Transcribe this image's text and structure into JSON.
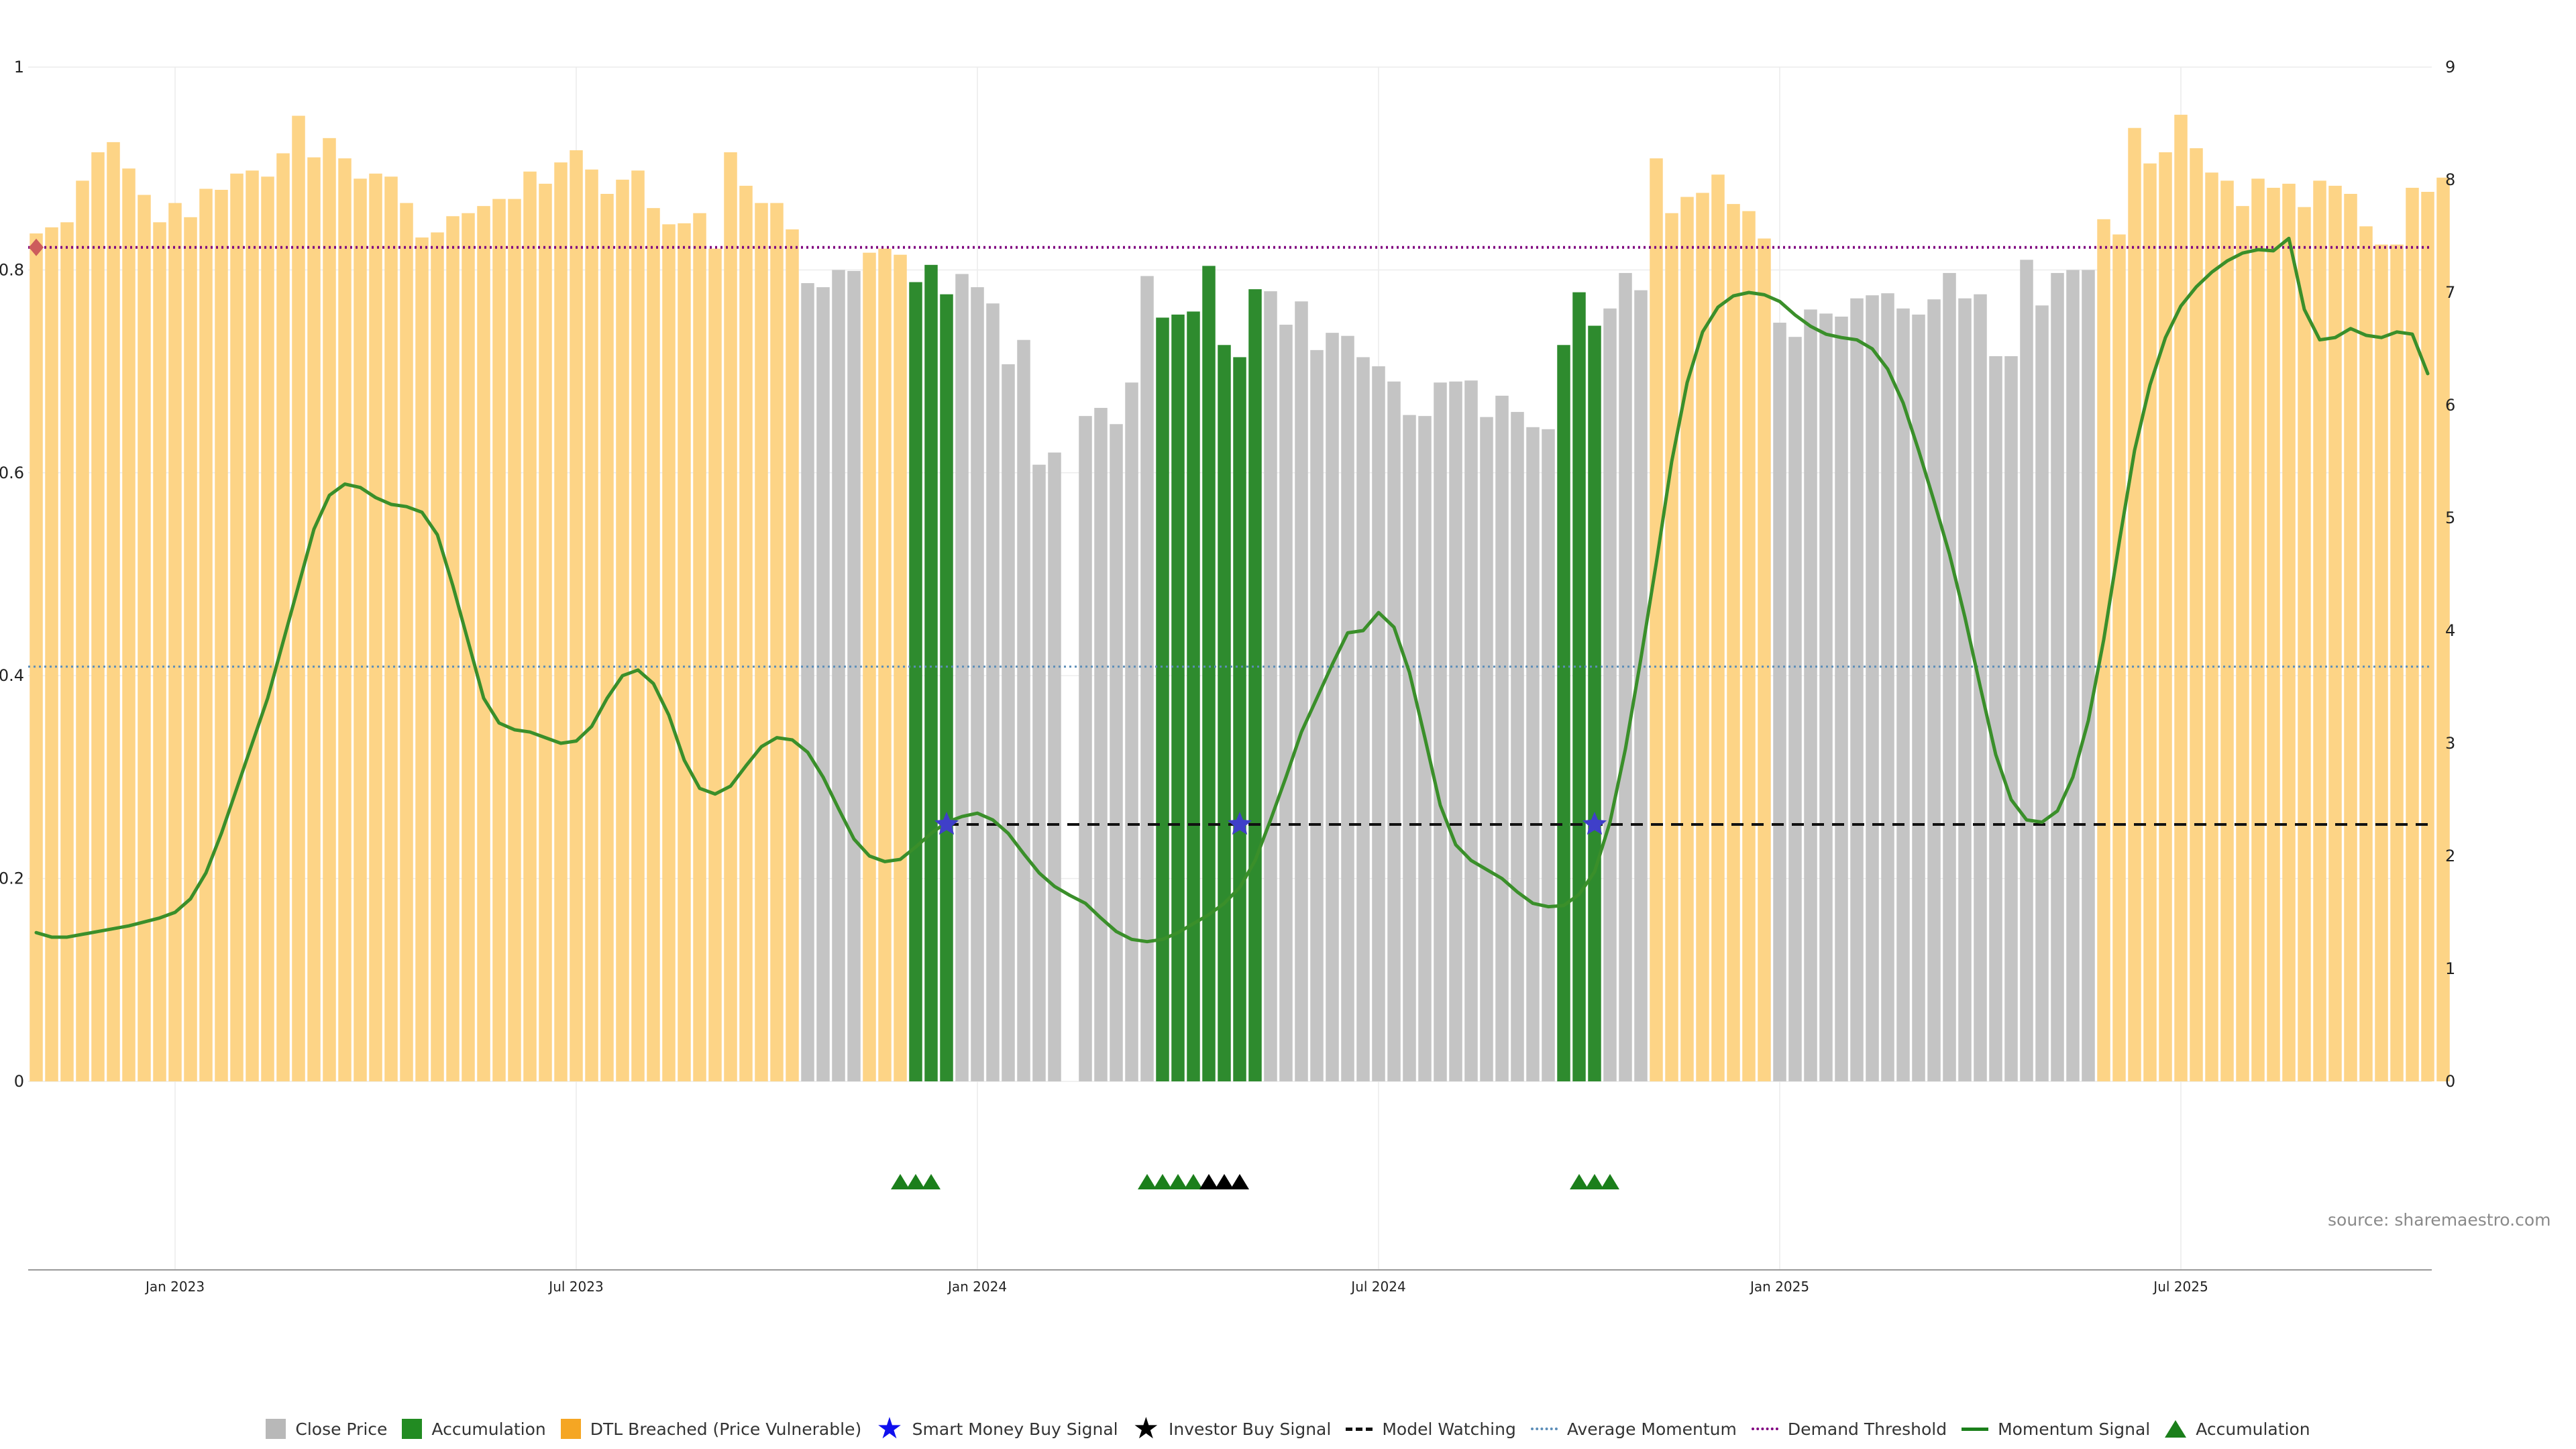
{
  "source_note": "source: sharemaestro.com",
  "colors": {
    "close": "#c4c4c4",
    "accumulation": "#2e8b2e",
    "dtl": "#fdd486",
    "momentum": "#3a8f2a",
    "avg_momentum": "#5b8db8",
    "demand": "#800080",
    "watching": "#111111",
    "smart_star": "#3f3fc9",
    "investor_star": "#000000",
    "marker_green": "#1b7f1b",
    "marker_black": "#000000",
    "diamond": "#cd5c5c"
  },
  "legend": [
    {
      "label": "Close Price",
      "kind": "square",
      "color": "#b8b8b8",
      "icon": "grey-square-icon"
    },
    {
      "label": "Accumulation",
      "kind": "square",
      "color": "#228b22",
      "icon": "green-square-icon"
    },
    {
      "label": "DTL Breached (Price Vulnerable)",
      "kind": "square",
      "color": "#f5a623",
      "icon": "orange-square-icon"
    },
    {
      "label": "Smart Money Buy Signal",
      "kind": "glyph",
      "glyph": "★",
      "color": "#1010ee",
      "icon": "blue-star-icon"
    },
    {
      "label": "Investor Buy Signal",
      "kind": "glyph",
      "glyph": "★",
      "color": "#000000",
      "icon": "black-star-icon"
    },
    {
      "label": "Model Watching",
      "kind": "line",
      "style": "dashed",
      "color": "#111111",
      "icon": "dashed-line-icon"
    },
    {
      "label": "Average Momentum",
      "kind": "line",
      "style": "dotted",
      "color": "#5b8db8",
      "icon": "dotted-blue-line-icon"
    },
    {
      "label": "Demand Threshold",
      "kind": "line",
      "style": "dotted",
      "color": "#800080",
      "icon": "dotted-purple-line-icon"
    },
    {
      "label": "Momentum Signal",
      "kind": "line",
      "style": "solid",
      "color": "#1b7f1b",
      "icon": "green-line-icon"
    },
    {
      "label": "Accumulation",
      "kind": "triangle",
      "color": "#1b7f1b",
      "icon": "green-triangle-icon"
    }
  ],
  "chart_data": {
    "type": "bar",
    "title": "",
    "xlabel": "",
    "ylabel_left": "",
    "ylabel_right": "",
    "left_axis": {
      "range": [
        0,
        1
      ],
      "ticks": [
        "0",
        "0.2",
        "0.4",
        "0.6",
        "0.8",
        "1"
      ],
      "tick_values": [
        0,
        0.2,
        0.4,
        0.6,
        0.8,
        1
      ]
    },
    "right_axis": {
      "range": [
        0,
        9
      ],
      "ticks": [
        "0",
        "1",
        "2",
        "3",
        "4",
        "5",
        "6",
        "7",
        "8",
        "9"
      ],
      "tick_values": [
        0,
        1,
        2,
        3,
        4,
        5,
        6,
        7,
        8,
        9
      ]
    },
    "grid": true,
    "legend_position": "bottom",
    "x_ticks": [
      {
        "label": "Jan 2023",
        "week": 9
      },
      {
        "label": "Jul 2023",
        "week": 35
      },
      {
        "label": "Jan 2024",
        "week": 61
      },
      {
        "label": "Jul 2024",
        "week": 87
      },
      {
        "label": "Jan 2025",
        "week": 113
      },
      {
        "label": "Jul 2025",
        "week": 139
      }
    ],
    "bars": {
      "unit": "weekly, price on left axis",
      "values": [
        0.836,
        0.842,
        0.847,
        0.888,
        0.916,
        0.926,
        0.9,
        0.874,
        0.847,
        0.866,
        0.852,
        0.88,
        0.879,
        0.895,
        0.898,
        0.892,
        0.915,
        0.952,
        0.911,
        0.93,
        0.91,
        0.89,
        0.895,
        0.892,
        0.866,
        0.832,
        0.837,
        0.853,
        0.856,
        0.863,
        0.87,
        0.87,
        0.897,
        0.885,
        0.906,
        0.918,
        0.899,
        0.875,
        0.889,
        0.898,
        0.861,
        0.845,
        0.846,
        0.856,
        0.821,
        0.916,
        0.883,
        0.866,
        0.866,
        0.84,
        0.787,
        0.783,
        0.8,
        0.799,
        0.817,
        0.821,
        0.815,
        0.788,
        0.805,
        0.776,
        0.796,
        0.783,
        0.767,
        0.707,
        0.731,
        0.608,
        0.62,
        null,
        0.656,
        0.664,
        0.648,
        0.689,
        0.794,
        0.753,
        0.756,
        0.759,
        0.804,
        0.726,
        0.714,
        0.781,
        0.779,
        0.746,
        0.769,
        0.721,
        0.738,
        0.735,
        0.714,
        0.705,
        0.69,
        0.657,
        0.656,
        0.689,
        0.69,
        0.691,
        0.655,
        0.676,
        0.66,
        0.645,
        0.643,
        0.726,
        0.778,
        0.745,
        0.762,
        0.797,
        0.78,
        0.91,
        0.856,
        0.872,
        0.876,
        0.894,
        0.865,
        0.858,
        0.831,
        0.748,
        0.734,
        0.761,
        0.757,
        0.754,
        0.772,
        0.775,
        0.777,
        0.762,
        0.756,
        0.771,
        0.797,
        0.772,
        0.776,
        0.715,
        0.715,
        0.81,
        0.765,
        0.797,
        0.8,
        0.8,
        0.85,
        0.835,
        0.94,
        0.905,
        0.916,
        0.953,
        0.92,
        0.896,
        0.888,
        0.863,
        0.89,
        0.881,
        0.885,
        0.862,
        0.888,
        0.883,
        0.875,
        0.843,
        0.825,
        0.825,
        0.881,
        0.877,
        0.891
      ],
      "category": [
        "dtl",
        "dtl",
        "dtl",
        "dtl",
        "dtl",
        "dtl",
        "dtl",
        "dtl",
        "dtl",
        "dtl",
        "dtl",
        "dtl",
        "dtl",
        "dtl",
        "dtl",
        "dtl",
        "dtl",
        "dtl",
        "dtl",
        "dtl",
        "dtl",
        "dtl",
        "dtl",
        "dtl",
        "dtl",
        "dtl",
        "dtl",
        "dtl",
        "dtl",
        "dtl",
        "dtl",
        "dtl",
        "dtl",
        "dtl",
        "dtl",
        "dtl",
        "dtl",
        "dtl",
        "dtl",
        "dtl",
        "dtl",
        "dtl",
        "dtl",
        "dtl",
        "dtl",
        "dtl",
        "dtl",
        "dtl",
        "dtl",
        "dtl",
        "close",
        "close",
        "close",
        "close",
        "dtl",
        "dtl",
        "dtl",
        "acc",
        "acc",
        "acc",
        "close",
        "close",
        "close",
        "close",
        "close",
        "close",
        "close",
        null,
        "close",
        "close",
        "close",
        "close",
        "close",
        "acc",
        "acc",
        "acc",
        "acc",
        "acc",
        "acc",
        "acc",
        "close",
        "close",
        "close",
        "close",
        "close",
        "close",
        "close",
        "close",
        "close",
        "close",
        "close",
        "close",
        "close",
        "close",
        "close",
        "close",
        "close",
        "close",
        "close",
        "acc",
        "acc",
        "acc",
        "close",
        "close",
        "close",
        "dtl",
        "dtl",
        "dtl",
        "dtl",
        "dtl",
        "dtl",
        "dtl",
        "dtl",
        "close",
        "close",
        "close",
        "close",
        "close",
        "close",
        "close",
        "close",
        "close",
        "close",
        "close",
        "close",
        "close",
        "close",
        "close",
        "close",
        "close",
        "close",
        "close",
        "close",
        "close",
        "dtl",
        "dtl",
        "dtl",
        "dtl",
        "dtl",
        "dtl",
        "dtl",
        "dtl",
        "dtl",
        "dtl",
        "dtl",
        "dtl",
        "dtl",
        "dtl",
        "dtl",
        "dtl",
        "dtl",
        "dtl",
        "dtl",
        "dtl",
        "dtl",
        "dtl",
        "dtl"
      ]
    },
    "momentum_signal": {
      "unit": "right axis",
      "points": [
        [
          0,
          1.32
        ],
        [
          1,
          1.28
        ],
        [
          2,
          1.28
        ],
        [
          4,
          1.33
        ],
        [
          6,
          1.38
        ],
        [
          8,
          1.45
        ],
        [
          9,
          1.5
        ],
        [
          10,
          1.62
        ],
        [
          11,
          1.85
        ],
        [
          12,
          2.2
        ],
        [
          13,
          2.6
        ],
        [
          14,
          3.0
        ],
        [
          15,
          3.4
        ],
        [
          16,
          3.9
        ],
        [
          17,
          4.4
        ],
        [
          18,
          4.9
        ],
        [
          19,
          5.2
        ],
        [
          20,
          5.3
        ],
        [
          21,
          5.27
        ],
        [
          22,
          5.18
        ],
        [
          23,
          5.12
        ],
        [
          24,
          5.1
        ],
        [
          25,
          5.05
        ],
        [
          26,
          4.85
        ],
        [
          27,
          4.4
        ],
        [
          28,
          3.9
        ],
        [
          29,
          3.4
        ],
        [
          30,
          3.18
        ],
        [
          31,
          3.12
        ],
        [
          32,
          3.1
        ],
        [
          33,
          3.05
        ],
        [
          34,
          3.0
        ],
        [
          35,
          3.02
        ],
        [
          36,
          3.15
        ],
        [
          37,
          3.4
        ],
        [
          38,
          3.6
        ],
        [
          39,
          3.65
        ],
        [
          40,
          3.53
        ],
        [
          41,
          3.25
        ],
        [
          42,
          2.85
        ],
        [
          43,
          2.6
        ],
        [
          44,
          2.55
        ],
        [
          45,
          2.62
        ],
        [
          46,
          2.8
        ],
        [
          47,
          2.97
        ],
        [
          48,
          3.05
        ],
        [
          49,
          3.03
        ],
        [
          50,
          2.92
        ],
        [
          51,
          2.7
        ],
        [
          52,
          2.42
        ],
        [
          53,
          2.15
        ],
        [
          54,
          2.0
        ],
        [
          55,
          1.95
        ],
        [
          56,
          1.97
        ],
        [
          57,
          2.08
        ],
        [
          58,
          2.2
        ],
        [
          59,
          2.3
        ],
        [
          60,
          2.35
        ],
        [
          61,
          2.38
        ],
        [
          62,
          2.32
        ],
        [
          63,
          2.2
        ],
        [
          64,
          2.02
        ],
        [
          65,
          1.85
        ],
        [
          66,
          1.73
        ],
        [
          67,
          1.65
        ],
        [
          68,
          1.58
        ],
        [
          69,
          1.45
        ],
        [
          70,
          1.33
        ],
        [
          71,
          1.26
        ],
        [
          72,
          1.24
        ],
        [
          73,
          1.26
        ],
        [
          74,
          1.32
        ],
        [
          75,
          1.4
        ],
        [
          76,
          1.48
        ],
        [
          77,
          1.58
        ],
        [
          78,
          1.72
        ],
        [
          79,
          1.96
        ],
        [
          80,
          2.32
        ],
        [
          81,
          2.7
        ],
        [
          82,
          3.1
        ],
        [
          83,
          3.4
        ],
        [
          84,
          3.7
        ],
        [
          85,
          3.98
        ],
        [
          86,
          4.0
        ],
        [
          87,
          4.16
        ],
        [
          88,
          4.03
        ],
        [
          89,
          3.63
        ],
        [
          90,
          3.05
        ],
        [
          91,
          2.45
        ],
        [
          92,
          2.1
        ],
        [
          93,
          1.96
        ],
        [
          94,
          1.88
        ],
        [
          95,
          1.8
        ],
        [
          96,
          1.68
        ],
        [
          97,
          1.58
        ],
        [
          98,
          1.55
        ],
        [
          99,
          1.56
        ],
        [
          100,
          1.66
        ],
        [
          101,
          1.86
        ],
        [
          102,
          2.3
        ],
        [
          103,
          2.95
        ],
        [
          104,
          3.75
        ],
        [
          105,
          4.6
        ],
        [
          106,
          5.5
        ],
        [
          107,
          6.2
        ],
        [
          108,
          6.65
        ],
        [
          109,
          6.87
        ],
        [
          110,
          6.97
        ],
        [
          111,
          7.0
        ],
        [
          112,
          6.98
        ],
        [
          113,
          6.92
        ],
        [
          114,
          6.8
        ],
        [
          115,
          6.7
        ],
        [
          116,
          6.63
        ],
        [
          117,
          6.6
        ],
        [
          118,
          6.58
        ],
        [
          119,
          6.5
        ],
        [
          120,
          6.32
        ],
        [
          121,
          6.02
        ],
        [
          122,
          5.6
        ],
        [
          123,
          5.15
        ],
        [
          124,
          4.68
        ],
        [
          125,
          4.12
        ],
        [
          126,
          3.5
        ],
        [
          127,
          2.9
        ],
        [
          128,
          2.5
        ],
        [
          129,
          2.32
        ],
        [
          130,
          2.3
        ],
        [
          131,
          2.4
        ],
        [
          132,
          2.7
        ],
        [
          133,
          3.2
        ],
        [
          134,
          3.92
        ],
        [
          135,
          4.78
        ],
        [
          136,
          5.6
        ],
        [
          137,
          6.18
        ],
        [
          138,
          6.6
        ],
        [
          139,
          6.88
        ],
        [
          140,
          7.05
        ],
        [
          141,
          7.18
        ],
        [
          142,
          7.28
        ],
        [
          143,
          7.35
        ],
        [
          144,
          7.38
        ],
        [
          145,
          7.37
        ],
        [
          146,
          7.48
        ],
        [
          147,
          6.85
        ],
        [
          148,
          6.58
        ],
        [
          149,
          6.6
        ],
        [
          150,
          6.68
        ],
        [
          151,
          6.62
        ],
        [
          152,
          6.6
        ],
        [
          153,
          6.65
        ],
        [
          154,
          6.63
        ],
        [
          155,
          6.28
        ]
      ]
    },
    "average_momentum": 3.68,
    "demand_threshold": 7.4,
    "model_watching": {
      "level": 2.28,
      "from_week": 59,
      "to_week": 155
    },
    "demand_marker_week": 0,
    "smart_money_buy_signals": [
      {
        "week": 59,
        "value": 2.28
      },
      {
        "week": 78,
        "value": 2.28
      },
      {
        "week": 101,
        "value": 2.28
      }
    ],
    "investor_buy_signals": [],
    "accumulation_markers": [
      56,
      57,
      58,
      72,
      73,
      74,
      75,
      100,
      101,
      102
    ],
    "investor_markers": [
      76,
      77,
      78
    ]
  }
}
